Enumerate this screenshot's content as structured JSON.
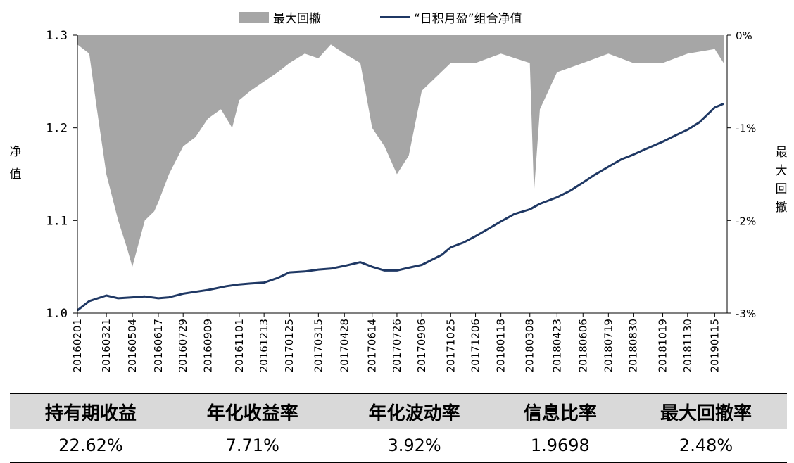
{
  "legend": {
    "drawdown_label": "最大回撤",
    "nav_label": "“日积月盈”组合净值"
  },
  "colors": {
    "nav_line": "#1f3864",
    "drawdown_area": "#a6a6a6"
  },
  "chart_data": {
    "type": "line",
    "left_axis": {
      "title": "净值",
      "ylim": [
        1.0,
        1.3
      ],
      "ticks": [
        "1.3",
        "1.2",
        "1.1",
        "1.0"
      ]
    },
    "right_axis": {
      "title": "最大回撤",
      "ylim": [
        -3,
        0
      ],
      "ticks": [
        "0%",
        "-1%",
        "-2%",
        "-3%"
      ]
    },
    "x_ticks": [
      "20160201",
      "20160321",
      "20160504",
      "20160617",
      "20160729",
      "20160909",
      "20161101",
      "20161213",
      "20170125",
      "20170315",
      "20170428",
      "20170614",
      "20170726",
      "20170906",
      "20171025",
      "20171206",
      "20180118",
      "20180308",
      "20180423",
      "20180606",
      "20180719",
      "20180830",
      "20181019",
      "20181130",
      "20190115"
    ],
    "grid": false,
    "series": [
      {
        "name": "“日积月盈”组合净值",
        "type": "line",
        "x": [
          "20160201",
          "20160221",
          "20160321",
          "20160410",
          "20160504",
          "20160525",
          "20160617",
          "20160705",
          "20160729",
          "20160819",
          "20160909",
          "20161010",
          "20161101",
          "20161120",
          "20161213",
          "20170105",
          "20170125",
          "20170220",
          "20170315",
          "20170405",
          "20170428",
          "20170525",
          "20170614",
          "20170705",
          "20170726",
          "20170815",
          "20170906",
          "20171010",
          "20171025",
          "20171115",
          "20171206",
          "20171225",
          "20180118",
          "20180210",
          "20180308",
          "20180325",
          "20180423",
          "20180515",
          "20180606",
          "20180625",
          "20180719",
          "20180810",
          "20180830",
          "20180920",
          "20181019",
          "20181110",
          "20181130",
          "20181220",
          "20190115",
          "20190130"
        ],
        "values": [
          1.003,
          1.013,
          1.019,
          1.016,
          1.017,
          1.018,
          1.016,
          1.017,
          1.021,
          1.023,
          1.025,
          1.029,
          1.031,
          1.032,
          1.033,
          1.038,
          1.044,
          1.045,
          1.047,
          1.048,
          1.051,
          1.055,
          1.05,
          1.046,
          1.046,
          1.049,
          1.052,
          1.063,
          1.071,
          1.076,
          1.083,
          1.09,
          1.099,
          1.107,
          1.112,
          1.118,
          1.125,
          1.132,
          1.141,
          1.149,
          1.158,
          1.166,
          1.171,
          1.177,
          1.185,
          1.192,
          1.198,
          1.206,
          1.222,
          1.226
        ]
      },
      {
        "name": "最大回撤",
        "type": "area",
        "x": [
          "20160201",
          "20160221",
          "20160305",
          "20160321",
          "20160410",
          "20160425",
          "20160504",
          "20160525",
          "20160610",
          "20160617",
          "20160705",
          "20160729",
          "20160819",
          "20160909",
          "20161001",
          "20161020",
          "20161101",
          "20161120",
          "20161213",
          "20170105",
          "20170125",
          "20170220",
          "20170315",
          "20170405",
          "20170428",
          "20170525",
          "20170614",
          "20170705",
          "20170726",
          "20170815",
          "20170906",
          "20171025",
          "20171206",
          "20180118",
          "20180308",
          "20180315",
          "20180325",
          "20180423",
          "20180606",
          "20180719",
          "20180830",
          "20181019",
          "20181130",
          "20190115",
          "20190130"
        ],
        "values": [
          -0.1,
          -0.2,
          -0.8,
          -1.5,
          -2.0,
          -2.3,
          -2.5,
          -2.0,
          -1.9,
          -1.8,
          -1.5,
          -1.2,
          -1.1,
          -0.9,
          -0.8,
          -1.0,
          -0.7,
          -0.6,
          -0.5,
          -0.4,
          -0.3,
          -0.2,
          -0.25,
          -0.1,
          -0.2,
          -0.3,
          -1.0,
          -1.2,
          -1.5,
          -1.3,
          -0.6,
          -0.3,
          -0.3,
          -0.2,
          -0.3,
          -1.7,
          -0.8,
          -0.4,
          -0.3,
          -0.2,
          -0.3,
          -0.3,
          -0.2,
          -0.15,
          -0.3
        ]
      }
    ]
  },
  "stats_table": {
    "headers": [
      "持有期收益",
      "年化收益率",
      "年化波动率",
      "信息比率",
      "最大回撤率"
    ],
    "values": [
      "22.62%",
      "7.71%",
      "3.92%",
      "1.9698",
      "2.48%"
    ]
  }
}
